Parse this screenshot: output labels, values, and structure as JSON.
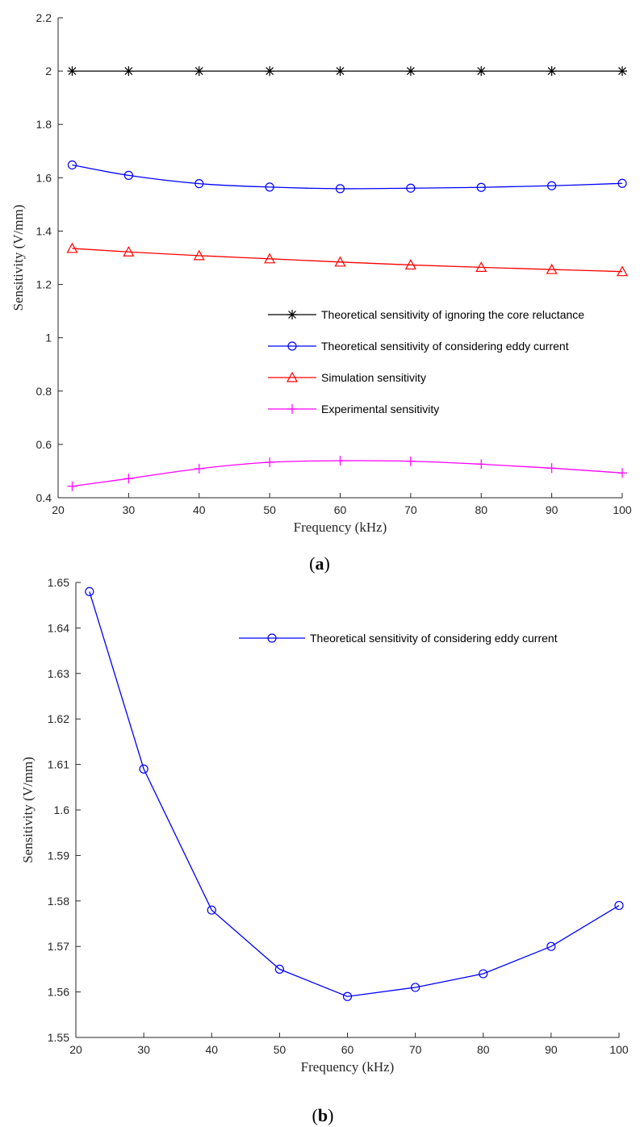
{
  "chart_data": [
    {
      "type": "line",
      "panel_label": "a",
      "xlabel": "Frequency (kHz)",
      "ylabel": "Sensitivity (V/mm)",
      "xlim": [
        20,
        100
      ],
      "ylim": [
        0.4,
        2.2
      ],
      "xticks": [
        20,
        30,
        40,
        50,
        60,
        70,
        80,
        90,
        100
      ],
      "yticks": [
        0.4,
        0.6,
        0.8,
        1,
        1.2,
        1.4,
        1.6,
        1.8,
        2,
        2.2
      ],
      "ytick_labels": [
        "0.4",
        "0.6",
        "0.8",
        "1",
        "1.2",
        "1.4",
        "1.6",
        "1.8",
        "2",
        "2.2"
      ],
      "legend_position": "center-right",
      "x": [
        22,
        30,
        40,
        50,
        60,
        70,
        80,
        90,
        100
      ],
      "series": [
        {
          "name": "Theoretical sensitivity of ignoring the core reluctance",
          "color": "#000000",
          "marker": "asterisk",
          "values": [
            2,
            2,
            2,
            2,
            2,
            2,
            2,
            2,
            2
          ]
        },
        {
          "name": "Theoretical sensitivity of considering eddy current",
          "color": "#0000ff",
          "marker": "circle",
          "values": [
            1.648,
            1.609,
            1.578,
            1.565,
            1.559,
            1.561,
            1.564,
            1.57,
            1.579
          ]
        },
        {
          "name": "Simulation sensitivity",
          "color": "#ff0000",
          "marker": "triangle",
          "values": [
            1.335,
            1.322,
            1.308,
            1.296,
            1.284,
            1.273,
            1.264,
            1.256,
            1.248
          ]
        },
        {
          "name": "Experimental sensitivity",
          "color": "#ff00ff",
          "marker": "plus",
          "values": [
            0.443,
            0.472,
            0.509,
            0.533,
            0.539,
            0.537,
            0.526,
            0.511,
            0.493
          ]
        }
      ]
    },
    {
      "type": "line",
      "panel_label": "b",
      "xlabel": "Frequency (kHz)",
      "ylabel": "Sensitivity (V/mm)",
      "xlim": [
        20,
        100
      ],
      "ylim": [
        1.55,
        1.65
      ],
      "xticks": [
        20,
        30,
        40,
        50,
        60,
        70,
        80,
        90,
        100
      ],
      "yticks": [
        1.55,
        1.56,
        1.57,
        1.58,
        1.59,
        1.6,
        1.61,
        1.62,
        1.63,
        1.64,
        1.65
      ],
      "ytick_labels": [
        "1.55",
        "1.56",
        "1.57",
        "1.58",
        "1.59",
        "1.6",
        "1.61",
        "1.62",
        "1.63",
        "1.64",
        "1.65"
      ],
      "legend_position": "top-right",
      "x": [
        22,
        30,
        40,
        50,
        60,
        70,
        80,
        90,
        100
      ],
      "series": [
        {
          "name": "Theoretical sensitivity of considering eddy current",
          "color": "#0000ff",
          "marker": "circle",
          "values": [
            1.648,
            1.609,
            1.578,
            1.565,
            1.559,
            1.561,
            1.564,
            1.57,
            1.579
          ]
        }
      ]
    }
  ]
}
